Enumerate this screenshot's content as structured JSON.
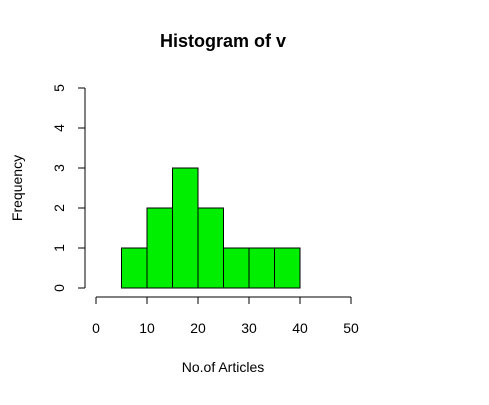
{
  "chart_data": {
    "type": "bar",
    "subtype": "histogram",
    "title": "Histogram of v",
    "xlabel": "No.of Articles",
    "ylabel": "Frequency",
    "bins": [
      {
        "start": 5,
        "end": 10,
        "count": 1
      },
      {
        "start": 10,
        "end": 15,
        "count": 2
      },
      {
        "start": 15,
        "end": 20,
        "count": 3
      },
      {
        "start": 20,
        "end": 25,
        "count": 2
      },
      {
        "start": 25,
        "end": 30,
        "count": 1
      },
      {
        "start": 30,
        "end": 35,
        "count": 1
      },
      {
        "start": 35,
        "end": 40,
        "count": 1
      }
    ],
    "xlim": [
      0,
      50
    ],
    "ylim": [
      0,
      5
    ],
    "x_ticks": [
      0,
      10,
      20,
      30,
      40,
      50
    ],
    "y_ticks": [
      0,
      1,
      2,
      3,
      4,
      5
    ],
    "grid": false,
    "legend": "none",
    "bar_color": "#00ee00",
    "bar_edge_color": "#000000"
  }
}
